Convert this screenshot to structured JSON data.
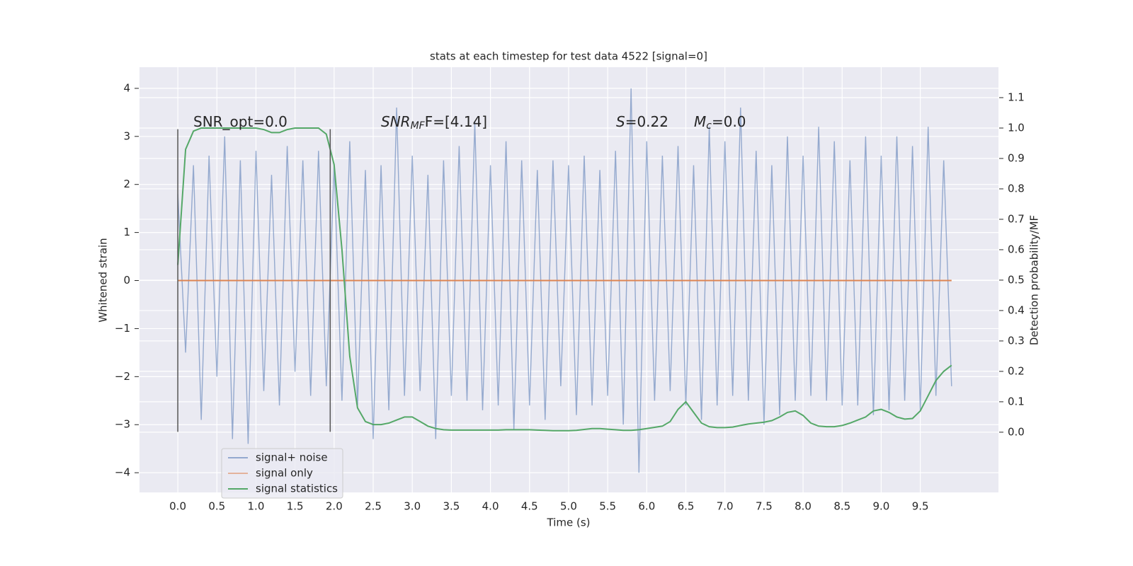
{
  "chart_data": {
    "type": "line",
    "title": "stats at each timestep for test data 4522 [signal=0]",
    "xlabel": "Time (s)",
    "ylabel": "Whitened strain",
    "y2label": "Detection probability/MF",
    "xlim": [
      -0.49,
      10.5
    ],
    "ylim": [
      -4.41,
      4.44
    ],
    "y2lim": [
      -0.198,
      1.2
    ],
    "xticks": [
      {
        "value": 0,
        "label": "0.0"
      },
      {
        "value": 0.5,
        "label": "0.5"
      },
      {
        "value": 1,
        "label": "1.0"
      },
      {
        "value": 1.5,
        "label": "1.5"
      },
      {
        "value": 2,
        "label": "2.0"
      },
      {
        "value": 2.5,
        "label": "2.5"
      },
      {
        "value": 3,
        "label": "3.0"
      },
      {
        "value": 3.5,
        "label": "3.5"
      },
      {
        "value": 4,
        "label": "4.0"
      },
      {
        "value": 4.5,
        "label": "4.5"
      },
      {
        "value": 5,
        "label": "5.0"
      },
      {
        "value": 5.5,
        "label": "5.5"
      },
      {
        "value": 6,
        "label": "6.0"
      },
      {
        "value": 6.5,
        "label": "6.5"
      },
      {
        "value": 7,
        "label": "7.0"
      },
      {
        "value": 7.5,
        "label": "7.5"
      },
      {
        "value": 8,
        "label": "8.0"
      },
      {
        "value": 8.5,
        "label": "8.5"
      },
      {
        "value": 9,
        "label": "9.0"
      },
      {
        "value": 9.5,
        "label": "9.5"
      }
    ],
    "yticks": [
      {
        "value": -4,
        "label": "−4"
      },
      {
        "value": -3,
        "label": "−3"
      },
      {
        "value": -2,
        "label": "−2"
      },
      {
        "value": -1,
        "label": "−1"
      },
      0,
      1,
      2,
      3,
      4
    ],
    "y2ticks": [
      {
        "value": 0,
        "label": "0.0"
      },
      {
        "value": 0.1,
        "label": "0.1"
      },
      {
        "value": 0.2,
        "label": "0.2"
      },
      {
        "value": 0.3,
        "label": "0.3"
      },
      {
        "value": 0.4,
        "label": "0.4"
      },
      {
        "value": 0.5,
        "label": "0.5"
      },
      {
        "value": 0.6,
        "label": "0.6"
      },
      {
        "value": 0.7,
        "label": "0.7"
      },
      {
        "value": 0.8,
        "label": "0.8"
      },
      {
        "value": 0.9,
        "label": "0.9"
      },
      {
        "value": 1.0,
        "label": "1.0"
      },
      {
        "value": 1.1,
        "label": "1.1"
      }
    ],
    "grid": true,
    "legend": "lower left",
    "x": [
      0,
      0.1,
      0.2,
      0.3,
      0.4,
      0.5,
      0.6,
      0.7,
      0.8,
      0.9,
      1,
      1.1,
      1.2,
      1.3,
      1.4,
      1.5,
      1.6,
      1.7,
      1.8,
      1.9,
      2,
      2.1,
      2.2,
      2.3,
      2.4,
      2.5,
      2.6,
      2.7,
      2.8,
      2.9,
      3,
      3.1,
      3.2,
      3.3,
      3.4,
      3.5,
      3.6,
      3.7,
      3.8,
      3.9,
      4,
      4.1,
      4.2,
      4.3,
      4.4,
      4.5,
      4.6,
      4.7,
      4.8,
      4.9,
      5,
      5.1,
      5.2,
      5.3,
      5.4,
      5.5,
      5.6,
      5.7,
      5.8,
      5.9,
      6,
      6.1,
      6.2,
      6.3,
      6.4,
      6.5,
      6.6,
      6.7,
      6.8,
      6.9,
      7,
      7.1,
      7.2,
      7.3,
      7.4,
      7.5,
      7.6,
      7.7,
      7.8,
      7.9,
      8,
      8.1,
      8.2,
      8.3,
      8.4,
      8.5,
      8.6,
      8.7,
      8.8,
      8.9,
      9,
      9.1,
      9.2,
      9.3,
      9.4,
      9.5,
      9.6,
      9.7,
      9.8,
      9.9
    ],
    "series": [
      {
        "name": "signal+ noise",
        "color": "#4c72b0",
        "values": [
          1.8,
          -1.5,
          2.4,
          -2.9,
          2.6,
          -2.0,
          3.0,
          -3.3,
          2.5,
          -3.4,
          2.7,
          -2.3,
          2.2,
          -2.6,
          2.8,
          -1.9,
          2.5,
          -2.4,
          2.7,
          -2.2,
          2.4,
          -2.5,
          2.9,
          -2.6,
          2.3,
          -3.3,
          2.4,
          -2.7,
          3.6,
          -2.4,
          2.6,
          -2.3,
          2.2,
          -3.3,
          2.5,
          -2.4,
          2.8,
          -2.5,
          3.3,
          -2.7,
          2.4,
          -2.6,
          2.9,
          -3.1,
          2.5,
          -2.6,
          2.3,
          -2.9,
          2.5,
          -2.2,
          2.4,
          -2.8,
          2.6,
          -2.6,
          2.3,
          -2.4,
          2.7,
          -3.0,
          4.0,
          -4.0,
          2.9,
          -2.5,
          2.6,
          -2.3,
          2.8,
          -2.6,
          2.4,
          -2.9,
          3.2,
          -2.6,
          2.9,
          -2.4,
          3.6,
          -2.5,
          2.7,
          -3.0,
          2.4,
          -2.8,
          3.0,
          -2.5,
          2.6,
          -2.4,
          3.2,
          -2.5,
          2.9,
          -2.6,
          2.5,
          -2.6,
          3.0,
          -2.8,
          2.6,
          -2.7,
          3.0,
          -2.5,
          2.8,
          -2.7,
          3.2,
          -2.4,
          2.5,
          -2.2
        ]
      },
      {
        "name": "signal only",
        "color": "#dd8452",
        "values": [
          0,
          0,
          0,
          0,
          0,
          0,
          0,
          0,
          0,
          0,
          0,
          0,
          0,
          0,
          0,
          0,
          0,
          0,
          0,
          0,
          0,
          0,
          0,
          0,
          0,
          0,
          0,
          0,
          0,
          0,
          0,
          0,
          0,
          0,
          0,
          0,
          0,
          0,
          0,
          0,
          0,
          0,
          0,
          0,
          0,
          0,
          0,
          0,
          0,
          0,
          0,
          0,
          0,
          0,
          0,
          0,
          0,
          0,
          0,
          0,
          0,
          0,
          0,
          0,
          0,
          0,
          0,
          0,
          0,
          0,
          0,
          0,
          0,
          0,
          0,
          0,
          0,
          0,
          0,
          0,
          0,
          0,
          0,
          0,
          0,
          0,
          0,
          0,
          0,
          0,
          0,
          0,
          0,
          0,
          0,
          0,
          0,
          0,
          0,
          0
        ]
      },
      {
        "name": "signal statistics",
        "color": "#55a868",
        "axis": "y2",
        "values": [
          0.55,
          0.93,
          0.99,
          1.0,
          1.0,
          1.0,
          1.0,
          1.0,
          1.0,
          1.0,
          1.0,
          0.995,
          0.985,
          0.985,
          0.995,
          1.0,
          1.0,
          1.0,
          1.0,
          0.98,
          0.88,
          0.6,
          0.25,
          0.08,
          0.035,
          0.025,
          0.025,
          0.03,
          0.04,
          0.05,
          0.05,
          0.035,
          0.02,
          0.012,
          0.008,
          0.007,
          0.007,
          0.007,
          0.007,
          0.007,
          0.007,
          0.007,
          0.008,
          0.008,
          0.008,
          0.008,
          0.007,
          0.006,
          0.005,
          0.005,
          0.005,
          0.006,
          0.009,
          0.012,
          0.012,
          0.01,
          0.008,
          0.006,
          0.006,
          0.008,
          0.012,
          0.016,
          0.02,
          0.035,
          0.075,
          0.1,
          0.065,
          0.03,
          0.018,
          0.015,
          0.015,
          0.017,
          0.022,
          0.027,
          0.03,
          0.033,
          0.038,
          0.05,
          0.065,
          0.07,
          0.055,
          0.03,
          0.02,
          0.018,
          0.018,
          0.022,
          0.03,
          0.04,
          0.05,
          0.07,
          0.075,
          0.065,
          0.05,
          0.043,
          0.045,
          0.07,
          0.12,
          0.17,
          0.2,
          0.22
        ]
      }
    ],
    "vlines": {
      "x": [
        0,
        1.95
      ],
      "ymin": -3.15,
      "ymax": 3.15
    },
    "annotations": [
      {
        "base": "SNR_opt=0.0"
      },
      {
        "base": "SNR",
        "sub": "MF",
        "rest": "F=[4.14]"
      },
      {
        "base": "S",
        "rest": "=0.22"
      },
      {
        "base": "M",
        "sub": "c",
        "rest": "=0.0"
      }
    ]
  }
}
